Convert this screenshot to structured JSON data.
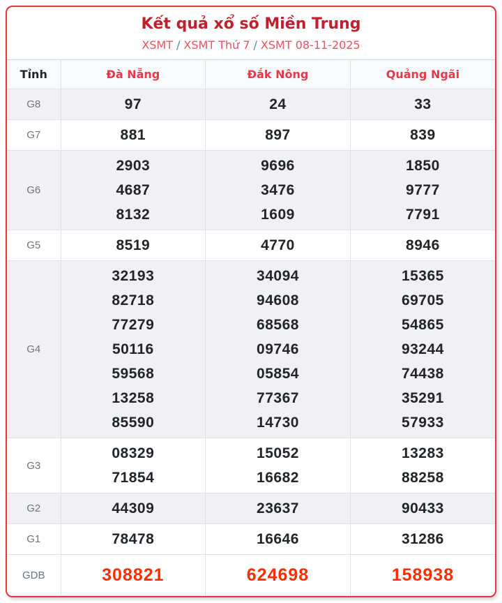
{
  "page": {
    "title": "Kết quả xổ số Miền Trung",
    "breadcrumb": {
      "separator": "/",
      "items": [
        {
          "label": "XSMT"
        },
        {
          "label": "XSMT Thứ 7"
        },
        {
          "label": "XSMT 08-11-2025"
        }
      ]
    }
  },
  "colors": {
    "title_red": "#c0202c",
    "breadcrumb_link_red": "#ec5360",
    "breadcrumb_separator_blue": "#3d8fd1",
    "card_border_red": "#e8323c",
    "column_header_red": "#e8394a",
    "special_prize_red": "#ff2e00",
    "number_dark": "#212529",
    "row_label_gray": "#6c757d",
    "shaded_row_bg": "#f1f1f3",
    "header_row_bg": "#f8f9fa",
    "grid_line_gray": "#dfe1e5"
  },
  "table": {
    "province_header": "Tỉnh",
    "columns": [
      "Đà Nẵng",
      "Đắk Nông",
      "Quảng Ngãi"
    ],
    "rows": [
      {
        "label": "G8",
        "shaded": true,
        "special": false,
        "cells": [
          [
            "97"
          ],
          [
            "24"
          ],
          [
            "33"
          ]
        ]
      },
      {
        "label": "G7",
        "shaded": false,
        "special": false,
        "cells": [
          [
            "881"
          ],
          [
            "897"
          ],
          [
            "839"
          ]
        ]
      },
      {
        "label": "G6",
        "shaded": true,
        "special": false,
        "cells": [
          [
            "2903",
            "4687",
            "8132"
          ],
          [
            "9696",
            "3476",
            "1609"
          ],
          [
            "1850",
            "9777",
            "7791"
          ]
        ]
      },
      {
        "label": "G5",
        "shaded": false,
        "special": false,
        "cells": [
          [
            "8519"
          ],
          [
            "4770"
          ],
          [
            "8946"
          ]
        ]
      },
      {
        "label": "G4",
        "shaded": true,
        "special": false,
        "cells": [
          [
            "32193",
            "82718",
            "77279",
            "50116",
            "59568",
            "13258",
            "85590"
          ],
          [
            "34094",
            "94608",
            "68568",
            "09746",
            "05854",
            "77367",
            "14730"
          ],
          [
            "15365",
            "69705",
            "54865",
            "93244",
            "74438",
            "35291",
            "57933"
          ]
        ]
      },
      {
        "label": "G3",
        "shaded": false,
        "special": false,
        "cells": [
          [
            "08329",
            "71854"
          ],
          [
            "15052",
            "16682"
          ],
          [
            "13283",
            "88258"
          ]
        ]
      },
      {
        "label": "G2",
        "shaded": true,
        "special": false,
        "cells": [
          [
            "44309"
          ],
          [
            "23637"
          ],
          [
            "90433"
          ]
        ]
      },
      {
        "label": "G1",
        "shaded": false,
        "special": false,
        "cells": [
          [
            "78478"
          ],
          [
            "16646"
          ],
          [
            "31286"
          ]
        ]
      },
      {
        "label": "GDB",
        "shaded": false,
        "special": true,
        "cells": [
          [
            "308821"
          ],
          [
            "624698"
          ],
          [
            "158938"
          ]
        ]
      }
    ]
  }
}
